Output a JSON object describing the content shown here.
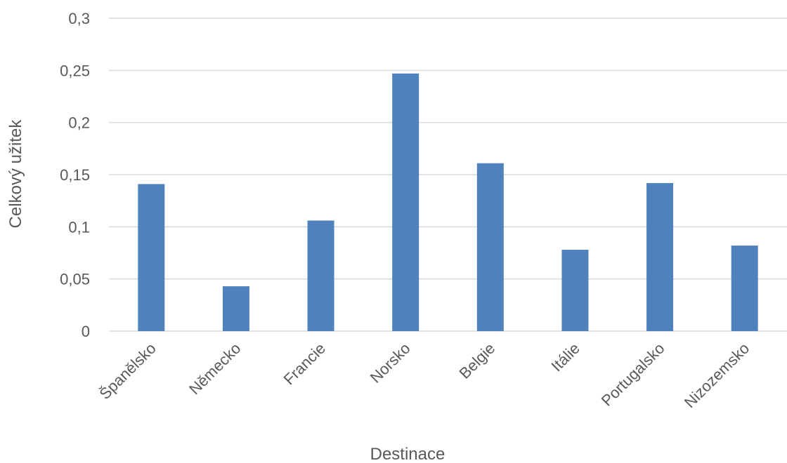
{
  "chart_data": {
    "type": "bar",
    "title": "",
    "xlabel": "Destinace",
    "ylabel": "Celkový užitek",
    "categories": [
      "Španělsko",
      "Německo",
      "Francie",
      "Norsko",
      "Belgie",
      "Itálie",
      "Portugalsko",
      "Nizozemsko"
    ],
    "values": [
      0.141,
      0.043,
      0.106,
      0.247,
      0.161,
      0.078,
      0.142,
      0.082
    ],
    "ylim": [
      0,
      0.3
    ],
    "yticks": [
      0,
      0.05,
      0.1,
      0.15,
      0.2,
      0.25,
      0.3
    ],
    "ytick_labels": [
      "0",
      "0,05",
      "0,1",
      "0,15",
      "0,2",
      "0,25",
      "0,3"
    ],
    "grid": true,
    "legend": "none",
    "colors": {
      "bar": "#4F81BD",
      "grid": "#D9D9D9",
      "text": "#595959"
    }
  }
}
